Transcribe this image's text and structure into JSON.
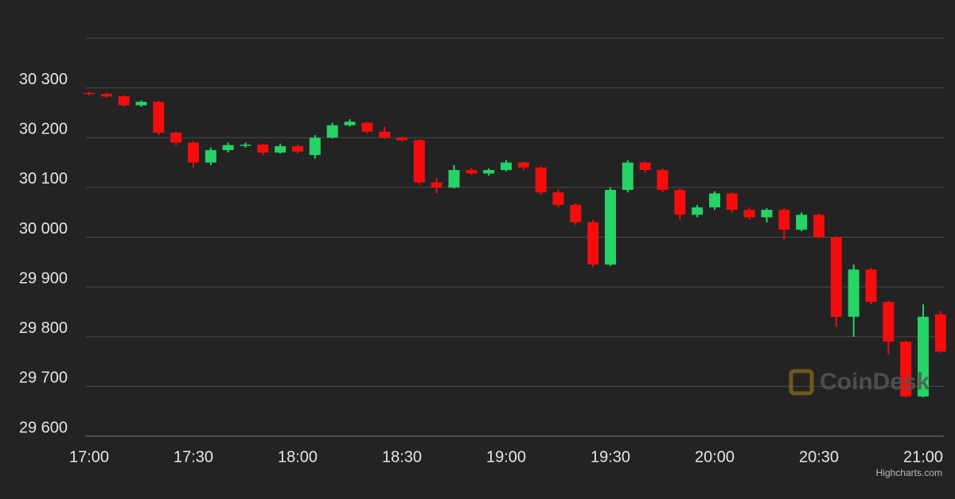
{
  "chart_data": {
    "type": "candlestick",
    "x": [
      "17:00",
      "17:05",
      "17:10",
      "17:15",
      "17:20",
      "17:25",
      "17:30",
      "17:35",
      "17:40",
      "17:45",
      "17:50",
      "17:55",
      "18:00",
      "18:05",
      "18:10",
      "18:15",
      "18:20",
      "18:25",
      "18:30",
      "18:35",
      "18:40",
      "18:45",
      "18:50",
      "18:55",
      "19:00",
      "19:05",
      "19:10",
      "19:15",
      "19:20",
      "19:25",
      "19:30",
      "19:35",
      "19:40",
      "19:45",
      "19:50",
      "19:55",
      "20:00",
      "20:05",
      "20:10",
      "20:15",
      "20:20",
      "20:25",
      "20:30",
      "20:35",
      "20:40",
      "20:45",
      "20:50",
      "20:55",
      "21:00",
      "21:05"
    ],
    "open": [
      30290,
      30288,
      30283,
      30265,
      30272,
      30210,
      30190,
      30150,
      30175,
      30185,
      30186,
      30170,
      30183,
      30165,
      30200,
      30225,
      30230,
      30212,
      30200,
      30195,
      30110,
      30100,
      30135,
      30128,
      30135,
      30150,
      30140,
      30090,
      30065,
      30030,
      29945,
      30095,
      30150,
      30135,
      30095,
      30045,
      30060,
      30088,
      30055,
      30040,
      30055,
      30015,
      30045,
      30000,
      29840,
      29935,
      29870,
      29790,
      29680,
      29845
    ],
    "high": [
      30292,
      30290,
      30285,
      30275,
      30274,
      30212,
      30192,
      30180,
      30190,
      30190,
      30188,
      30188,
      30186,
      30205,
      30230,
      30237,
      30232,
      30222,
      30202,
      30197,
      30118,
      30145,
      30140,
      30138,
      30155,
      30152,
      30142,
      30095,
      30068,
      30035,
      30100,
      30155,
      30152,
      30138,
      30098,
      30065,
      30092,
      30090,
      30060,
      30058,
      30058,
      30050,
      30048,
      30002,
      29945,
      29938,
      29872,
      29792,
      29865,
      29852
    ],
    "low": [
      30285,
      30281,
      30262,
      30262,
      30205,
      30185,
      30140,
      30145,
      30170,
      30180,
      30165,
      30168,
      30168,
      30158,
      30198,
      30222,
      30208,
      30198,
      30192,
      30105,
      30088,
      30098,
      30125,
      30124,
      30132,
      30135,
      30085,
      30060,
      30025,
      29940,
      29942,
      30090,
      30130,
      30090,
      30035,
      30040,
      30055,
      30050,
      30035,
      30030,
      29995,
      30012,
      29998,
      29820,
      29800,
      29865,
      29765,
      29678,
      29678,
      29768
    ],
    "close": [
      30288,
      30283,
      30265,
      30272,
      30210,
      30190,
      30150,
      30175,
      30185,
      30186,
      30170,
      30183,
      30172,
      30200,
      30225,
      30232,
      30212,
      30200,
      30195,
      30110,
      30100,
      30135,
      30128,
      30135,
      30150,
      30140,
      30090,
      30065,
      30030,
      29945,
      30095,
      30150,
      30135,
      30095,
      30045,
      30060,
      30088,
      30055,
      30040,
      30055,
      30015,
      30045,
      30000,
      29840,
      29935,
      29870,
      29790,
      29680,
      29840,
      29770
    ],
    "up_color": "#25d366",
    "down_color": "#f30d0d",
    "ylim": [
      29600,
      30400
    ],
    "yticks": [
      {
        "value": 29600,
        "label": "29 600"
      },
      {
        "value": 29700,
        "label": "29 700"
      },
      {
        "value": 29800,
        "label": "29 800"
      },
      {
        "value": 29900,
        "label": "29 900"
      },
      {
        "value": 30000,
        "label": "30 000"
      },
      {
        "value": 30100,
        "label": "30 100"
      },
      {
        "value": 30200,
        "label": "30 200"
      },
      {
        "value": 30300,
        "label": "30 300"
      }
    ],
    "xticks": [
      "17:00",
      "17:30",
      "18:00",
      "18:30",
      "19:00",
      "19:30",
      "20:00",
      "20:30",
      "21:00"
    ],
    "grid": true,
    "watermark": "CoinDesk",
    "credits": "Highcharts.com"
  }
}
